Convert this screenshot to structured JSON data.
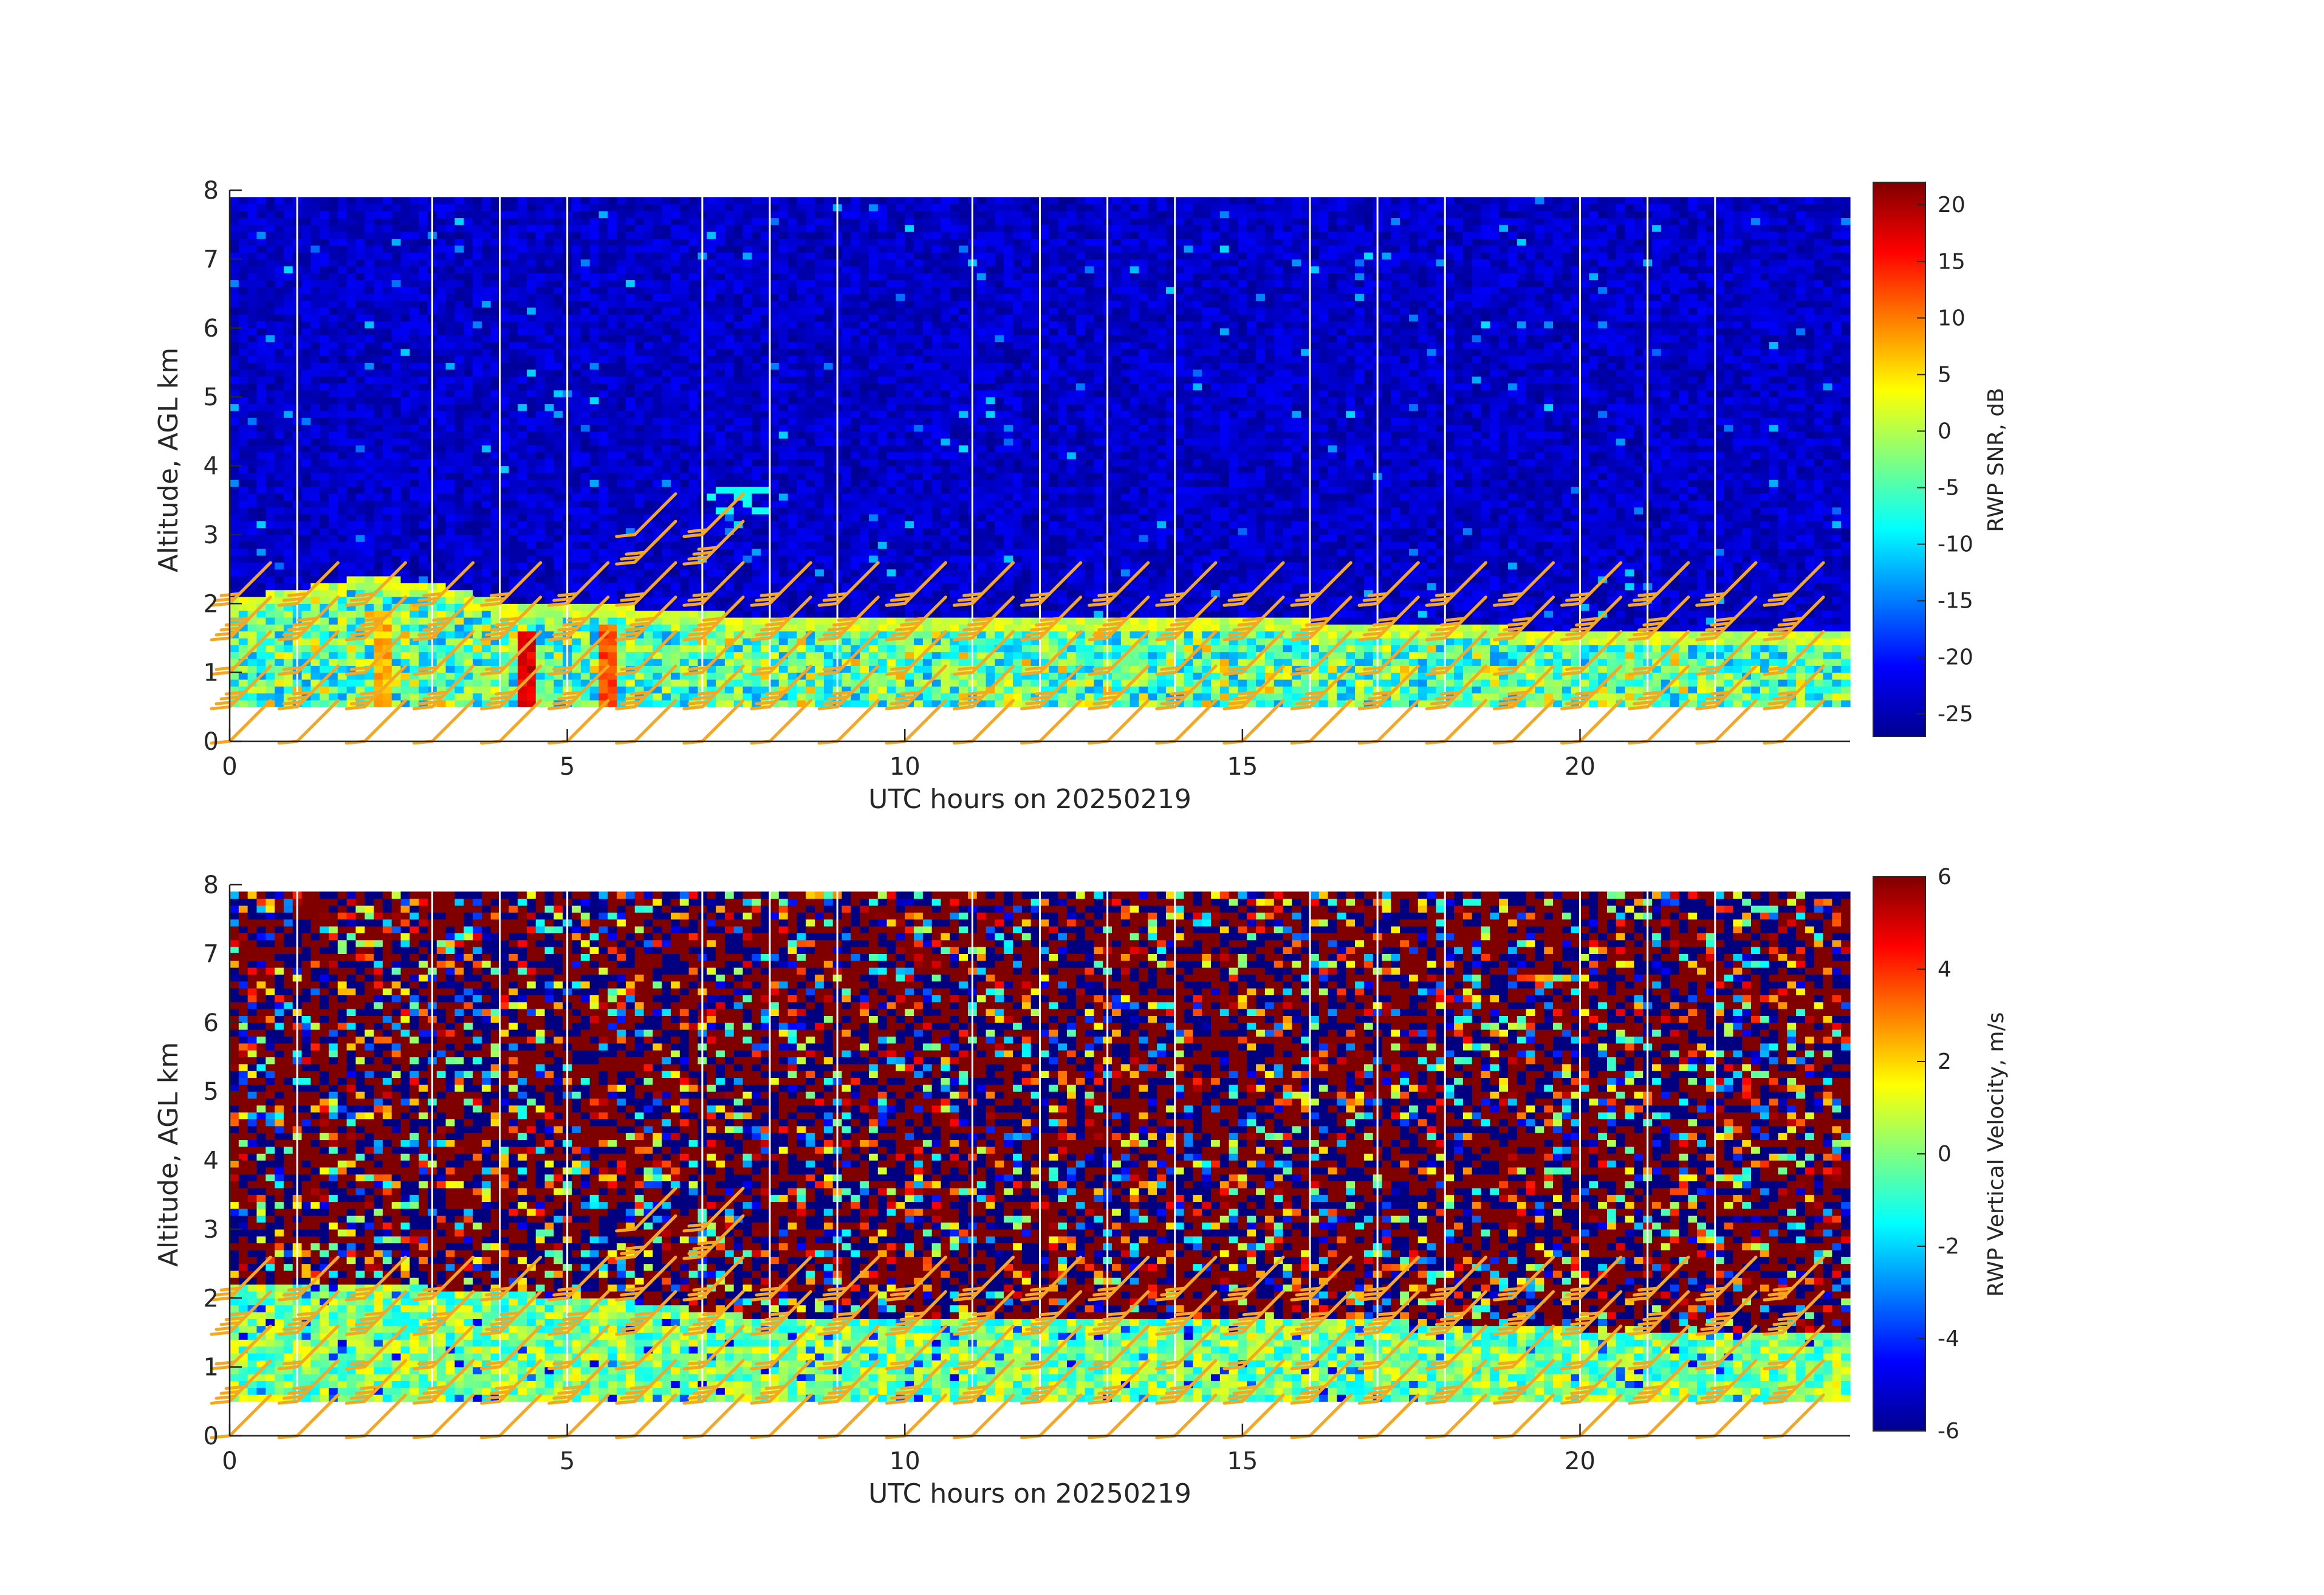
{
  "chart_data": [
    {
      "type": "heatmap",
      "name": "snr-panel",
      "xlabel": "UTC hours on 20250219",
      "ylabel": "Altitude, AGL km",
      "xlim": [
        0,
        24
      ],
      "ylim": [
        0,
        8
      ],
      "x_ticks": [
        0,
        5,
        10,
        15,
        20
      ],
      "y_ticks": [
        0,
        1,
        2,
        3,
        4,
        5,
        6,
        7,
        8
      ],
      "colorbar": {
        "label": "RWP SNR, dB",
        "range": [
          -27,
          22
        ],
        "ticks": [
          20,
          15,
          10,
          5,
          0,
          -5,
          -10,
          -15,
          -20,
          -25
        ],
        "colormap": "jet"
      },
      "data_region": {
        "min_altitude_km": 0.5,
        "max_altitude_km": 7.9
      },
      "data_gaps_utc_hours": [
        1,
        3,
        4,
        5,
        7,
        8,
        9,
        11,
        12,
        13,
        14,
        16,
        17,
        18,
        20,
        21,
        22
      ],
      "boundary_layer_top_km": [
        [
          0,
          2.0
        ],
        [
          1,
          2.1
        ],
        [
          2,
          2.3
        ],
        [
          3,
          2.2
        ],
        [
          4,
          1.95
        ],
        [
          6,
          1.85
        ],
        [
          8,
          1.7
        ],
        [
          12,
          1.7
        ],
        [
          16,
          1.65
        ],
        [
          18,
          1.6
        ],
        [
          20,
          1.5
        ],
        [
          24,
          1.5
        ]
      ],
      "strong_echo_features": [
        {
          "x": 4.3,
          "y_range": [
            0.5,
            1.5
          ],
          "value_db": 20
        },
        {
          "x": 5.5,
          "y_range": [
            0.5,
            1.7
          ],
          "value_db": 15
        },
        {
          "x": 2.2,
          "y_range": [
            0.5,
            1.9
          ],
          "value_db": 10
        }
      ],
      "elevated_layer": {
        "x_range": [
          7.0,
          7.9
        ],
        "y_range": [
          3.3,
          3.6
        ],
        "value_db": -8
      }
    },
    {
      "type": "heatmap",
      "name": "vertical-velocity-panel",
      "xlabel": "UTC hours on 20250219",
      "ylabel": "Altitude, AGL km",
      "xlim": [
        0,
        24
      ],
      "ylim": [
        0,
        8
      ],
      "x_ticks": [
        0,
        5,
        10,
        15,
        20
      ],
      "y_ticks": [
        0,
        1,
        2,
        3,
        4,
        5,
        6,
        7,
        8
      ],
      "colorbar": {
        "label": "RWP Vertical Velocity, m/s",
        "range": [
          -6,
          6
        ],
        "ticks": [
          6,
          4,
          2,
          0,
          -2,
          -4,
          -6
        ],
        "colormap": "jet"
      },
      "data_region": {
        "min_altitude_km": 0.5,
        "max_altitude_km": 7.9
      },
      "data_gaps_utc_hours": [
        1,
        3,
        4,
        5,
        7,
        8,
        9,
        11,
        12,
        13,
        14,
        16,
        17,
        18,
        20,
        21,
        22
      ],
      "boundary_layer_top_km": [
        [
          0,
          2.3
        ],
        [
          3,
          2.2
        ],
        [
          6,
          2.0
        ],
        [
          8,
          1.75
        ],
        [
          16,
          1.75
        ],
        [
          20,
          1.6
        ],
        [
          24,
          1.6
        ]
      ]
    }
  ],
  "wind_barbs": {
    "color": "#f5a623",
    "times_utc_hours": [
      0,
      1,
      2,
      3,
      4,
      5,
      6,
      7,
      8,
      9,
      10,
      11,
      12,
      13,
      14,
      15,
      16,
      17,
      18,
      19,
      20,
      21,
      22,
      23
    ],
    "altitudes_km": [
      0,
      0.5,
      1,
      1.5,
      2
    ],
    "elevated_barbs": [
      [
        6,
        2.6
      ],
      [
        6,
        3.0
      ],
      [
        7,
        2.6
      ],
      [
        7,
        3.0
      ],
      [
        10,
        2.0
      ],
      [
        11,
        2.0
      ],
      [
        16,
        2.0
      ],
      [
        17,
        2.0
      ],
      [
        18,
        2.0
      ],
      [
        21,
        2.0
      ],
      [
        22,
        2.0
      ]
    ],
    "direction_from_deg": 225,
    "speed_knots_range": [
      5,
      35
    ]
  }
}
